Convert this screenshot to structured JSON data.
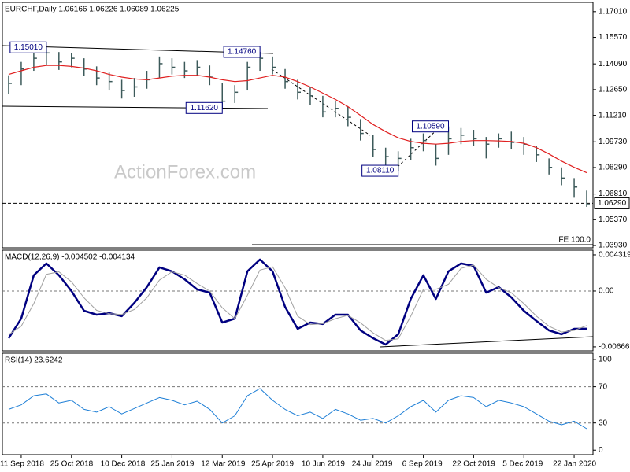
{
  "chart_data": [
    {
      "type": "ohlc",
      "title": "EURCHF,Daily  1.06166 1.06226 1.06089 1.06225",
      "watermark": "ActionForex.com",
      "fe_label": "FE 100.0",
      "color": "#3c5a5a",
      "ylim": [
        1.038,
        1.1753
      ],
      "yticks": [
        {
          "value": 1.1701,
          "label": "1.17010"
        },
        {
          "value": 1.1557,
          "label": "1.15570"
        },
        {
          "value": 1.1409,
          "label": "1.14090"
        },
        {
          "value": 1.1265,
          "label": "1.12650"
        },
        {
          "value": 1.1121,
          "label": "1.11210"
        },
        {
          "value": 1.0973,
          "label": "1.09730"
        },
        {
          "value": 1.0829,
          "label": "1.08290"
        },
        {
          "value": 1.0681,
          "label": "1.06810"
        },
        {
          "value": 1.0537,
          "label": "1.05370"
        },
        {
          "value": 1.0393,
          "label": "1.03930"
        }
      ],
      "high": [
        1.1345,
        1.142,
        1.148,
        1.1501,
        1.1475,
        1.147,
        1.144,
        1.1395,
        1.136,
        1.132,
        1.133,
        1.137,
        1.145,
        1.144,
        1.142,
        1.143,
        1.14,
        1.13,
        1.129,
        1.142,
        1.1476,
        1.145,
        1.138,
        1.132,
        1.128,
        1.123,
        1.12,
        1.117,
        1.11,
        1.101,
        1.094,
        1.092,
        1.099,
        1.102,
        1.096,
        1.1059,
        1.105,
        1.104,
        1.1,
        1.102,
        1.103,
        1.1,
        1.095,
        1.088,
        1.083,
        1.077,
        1.07
      ],
      "low": [
        1.124,
        1.129,
        1.137,
        1.14,
        1.1375,
        1.139,
        1.134,
        1.129,
        1.126,
        1.1215,
        1.1225,
        1.127,
        1.133,
        1.135,
        1.133,
        1.1345,
        1.129,
        1.1162,
        1.119,
        1.126,
        1.137,
        1.135,
        1.127,
        1.121,
        1.118,
        1.111,
        1.111,
        1.106,
        1.098,
        1.089,
        1.084,
        1.0811,
        1.087,
        1.092,
        1.084,
        1.09,
        1.096,
        1.095,
        1.088,
        1.094,
        1.093,
        1.09,
        1.086,
        1.079,
        1.073,
        1.066,
        1.0609
      ],
      "close": [
        1.13,
        1.138,
        1.144,
        1.147,
        1.142,
        1.144,
        1.138,
        1.133,
        1.131,
        1.126,
        1.128,
        1.132,
        1.141,
        1.139,
        1.137,
        1.139,
        1.134,
        1.12,
        1.125,
        1.139,
        1.144,
        1.139,
        1.131,
        1.125,
        1.123,
        1.114,
        1.116,
        1.111,
        1.102,
        1.093,
        1.089,
        1.088,
        1.094,
        1.098,
        1.088,
        1.099,
        1.101,
        1.099,
        1.096,
        1.099,
        1.097,
        1.096,
        1.09,
        1.083,
        1.077,
        1.072,
        1.0622
      ],
      "ma": {
        "color": "#e02020",
        "values": [
          1.135,
          1.137,
          1.139,
          1.14,
          1.14,
          1.1395,
          1.1385,
          1.137,
          1.135,
          1.1335,
          1.1325,
          1.132,
          1.133,
          1.134,
          1.1345,
          1.1345,
          1.1335,
          1.132,
          1.131,
          1.1315,
          1.133,
          1.1345,
          1.1335,
          1.131,
          1.128,
          1.1245,
          1.121,
          1.117,
          1.112,
          1.107,
          1.103,
          1.0995,
          1.0975,
          1.0965,
          1.096,
          1.0965,
          1.0975,
          1.098,
          1.098,
          1.0978,
          1.0975,
          1.0965,
          1.094,
          1.0905,
          1.0865,
          1.083,
          1.08
        ]
      },
      "annotations": [
        {
          "value": 1.1501,
          "label": "1.15010"
        },
        {
          "value": 1.1476,
          "label": "1.14760"
        },
        {
          "value": 1.1162,
          "label": "1.11620"
        },
        {
          "value": 1.1059,
          "label": "1.10590"
        },
        {
          "value": 1.0811,
          "label": "1.08110"
        }
      ],
      "last_price": {
        "value": 1.0629,
        "label": "1.06290"
      }
    },
    {
      "type": "line",
      "title": "MACD(12,26,9) -0.004502 -0.004134",
      "ylim": [
        -0.00714,
        0.00488
      ],
      "yticks": [
        0.004319,
        {
          "value": 0,
          "label": "0.00"
        },
        -0.006663
      ],
      "level_lines": [
        0
      ],
      "series": [
        {
          "color": "#000080",
          "width": 2.5,
          "values": [
            -0.00563,
            -0.00329,
            0.00188,
            0.00329,
            0.00188,
            0,
            -0.00235,
            -0.00282,
            -0.00263,
            -0.003,
            -0.00141,
            0.00047,
            0.00282,
            0.00235,
            0.00141,
            0.00019,
            -0.00019,
            -0.00376,
            -0.00329,
            0.00235,
            0.00376,
            0.00235,
            -0.00188,
            -0.00451,
            -0.00376,
            -0.00394,
            -0.00282,
            -0.00282,
            -0.0047,
            -0.00563,
            -0.00639,
            -0.00516,
            -0.00094,
            0.00188,
            -0.00094,
            0.00235,
            0.00329,
            0.003,
            -0.00019,
            0.00047,
            -0.00075,
            -0.00235,
            -0.00357,
            -0.0047,
            -0.00516,
            -0.00451,
            -0.0045
          ]
        },
        {
          "color": "#a0a0a0",
          "width": 1,
          "values": [
            -0.0052,
            -0.0042,
            -0.0015,
            0.002,
            0.0023,
            0.0011,
            -0.0008,
            -0.0023,
            -0.0027,
            -0.0028,
            -0.0022,
            -0.0008,
            0.0013,
            0.0023,
            0.0019,
            0.0009,
            0.0,
            -0.002,
            -0.0033,
            -0.0005,
            0.0025,
            0.0029,
            0.0004,
            -0.003,
            -0.004,
            -0.0039,
            -0.0033,
            -0.0029,
            -0.0038,
            -0.005,
            -0.0059,
            -0.0057,
            -0.003,
            0.0002,
            0.0002,
            0.0008,
            0.0027,
            0.0031,
            0.0014,
            0.0004,
            -0.0002,
            -0.0015,
            -0.003,
            -0.0042,
            -0.0049,
            -0.0047,
            -0.00413
          ]
        }
      ]
    },
    {
      "type": "line",
      "title": "RSI(14) 23.6242",
      "ylim": [
        -5,
        107
      ],
      "yticks": [
        100,
        70,
        30,
        0
      ],
      "level_lines": [
        70,
        30
      ],
      "categories": [
        null,
        "11 Sep 2018",
        null,
        null,
        null,
        "25 Oct 2018",
        null,
        null,
        null,
        "10 Dec 2018",
        null,
        null,
        null,
        "25 Jan 2019",
        null,
        null,
        null,
        "12 Mar 2019",
        null,
        null,
        null,
        "25 Apr 2019",
        null,
        null,
        null,
        "10 Jun 2019",
        null,
        null,
        null,
        "24 Jul 2019",
        null,
        null,
        null,
        "6 Sep 2019",
        null,
        null,
        null,
        "22 Oct 2019",
        null,
        null,
        null,
        "5 Dec 2019",
        null,
        null,
        null,
        "22 Jan 2020",
        null
      ],
      "series": [
        {
          "color": "#1e7fd6",
          "width": 1,
          "values": [
            45,
            50,
            60,
            62,
            52,
            55,
            45,
            42,
            48,
            40,
            46,
            52,
            58,
            55,
            50,
            54,
            45,
            30,
            38,
            60,
            68,
            55,
            45,
            38,
            42,
            35,
            45,
            40,
            33,
            35,
            30,
            38,
            48,
            55,
            42,
            55,
            60,
            58,
            48,
            55,
            52,
            48,
            40,
            32,
            28,
            32,
            23.6242
          ]
        }
      ]
    }
  ]
}
